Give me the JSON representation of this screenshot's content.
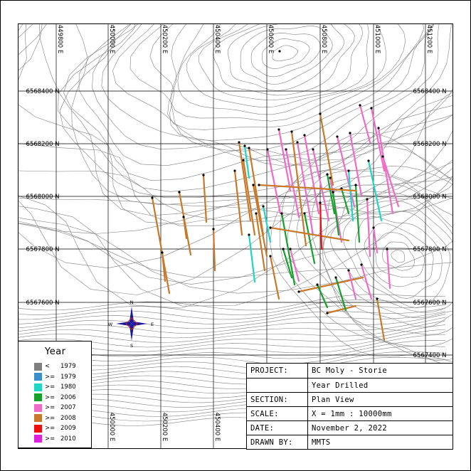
{
  "project": {
    "rows": [
      {
        "key": "PROJECT:",
        "value": "BC Moly - Storie"
      },
      {
        "key": "",
        "value": "Year Drilled"
      },
      {
        "key": "SECTION:",
        "value": "Plan View"
      },
      {
        "key": "SCALE:",
        "value": "X = 1mm : 10000mm"
      },
      {
        "key": "DATE:",
        "value": "November 2, 2022"
      },
      {
        "key": "DRAWN BY:",
        "value": "MMTS"
      }
    ]
  },
  "legend": {
    "title": "Year",
    "items": [
      {
        "op": "<",
        "year": "1979",
        "color": "#7f7f7f"
      },
      {
        "op": ">=",
        "year": "1979",
        "color": "#3b8fc9"
      },
      {
        "op": ">=",
        "year": "1980",
        "color": "#1fd6c0"
      },
      {
        "op": ">=",
        "year": "2006",
        "color": "#16a02c"
      },
      {
        "op": ">=",
        "year": "2007",
        "color": "#f06ac8"
      },
      {
        "op": ">=",
        "year": "2008",
        "color": "#c8782a"
      },
      {
        "op": ">=",
        "year": "2009",
        "color": "#ee1010"
      },
      {
        "op": ">=",
        "year": "2010",
        "color": "#dd22dd"
      }
    ]
  },
  "grid": {
    "eastings_top": [
      "449800 E",
      "450000 E",
      "450200 E",
      "450400 E",
      "450600 E",
      "450800 E",
      "451000 E",
      "451200 E"
    ],
    "eastings_bottom": [
      "450000 E",
      "450200 E",
      "450400 E"
    ],
    "northings_left": [
      "6568400 N",
      "6568200 N",
      "6568000 N",
      "6567800 N",
      "6567600 N"
    ],
    "northings_right": [
      "6568400 N",
      "6568200 N",
      "6568000 N",
      "6567800 N",
      "6567600 N",
      "6567400 N"
    ]
  },
  "north_arrow": {
    "n": "N",
    "s": "S",
    "e": "E",
    "w": "W",
    "color": "#1a1aa0",
    "accent": "#cc2222"
  }
}
